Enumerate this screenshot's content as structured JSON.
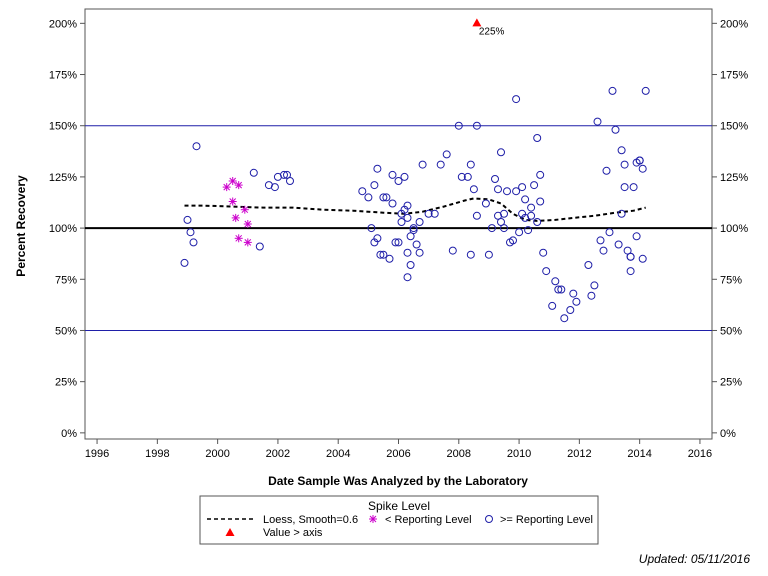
{
  "chart_data": {
    "type": "scatter",
    "xlabel": "Date Sample Was Analyzed by the Laboratory",
    "ylabel": "Percent Recovery",
    "xlim": [
      1995.6,
      2016.4
    ],
    "ylim": [
      -3,
      207
    ],
    "x_ticks": [
      1996,
      1998,
      2000,
      2002,
      2004,
      2006,
      2008,
      2010,
      2012,
      2014,
      2016
    ],
    "x_tick_labels": [
      "1996",
      "1998",
      "2000",
      "2002",
      "2004",
      "2006",
      "2008",
      "2010",
      "2012",
      "2014",
      "2016"
    ],
    "y_ticks": [
      0,
      25,
      50,
      75,
      100,
      125,
      150,
      175,
      200
    ],
    "y_tick_labels": [
      "0%",
      "25%",
      "50%",
      "75%",
      "100%",
      "125%",
      "150%",
      "175%",
      "200%"
    ],
    "reference_lines": [
      {
        "y": 50,
        "color": "#1f1fa8",
        "style": "thin"
      },
      {
        "y": 100,
        "color": "#000000",
        "style": "thick"
      },
      {
        "y": 150,
        "color": "#1f1fa8",
        "style": "thin"
      }
    ],
    "legend": {
      "title": "Spike Level",
      "position": "bottom",
      "entries": [
        {
          "label": "Loess, Smooth=0.6",
          "symbol": "dashed-line"
        },
        {
          "label": "< Reporting Level",
          "symbol": "star"
        },
        {
          "label": ">= Reporting Level",
          "symbol": "circle"
        },
        {
          "label": "Value > axis",
          "symbol": "triangle"
        }
      ]
    },
    "series": [
      {
        "name": "Loess, Smooth=0.6",
        "kind": "line",
        "color": "#000000",
        "points": [
          [
            1998.9,
            111
          ],
          [
            1999.5,
            111
          ],
          [
            2000.5,
            110.5
          ],
          [
            2001.5,
            110
          ],
          [
            2002.5,
            110
          ],
          [
            2003.5,
            109
          ],
          [
            2004.5,
            108.5
          ],
          [
            2005.5,
            107.5
          ],
          [
            2006.2,
            107
          ],
          [
            2006.8,
            108
          ],
          [
            2007.5,
            110.5
          ],
          [
            2008.2,
            113.5
          ],
          [
            2008.5,
            114.5
          ],
          [
            2009.0,
            114
          ],
          [
            2009.4,
            112
          ],
          [
            2009.8,
            107
          ],
          [
            2010.2,
            104
          ],
          [
            2010.6,
            103.5
          ],
          [
            2011.2,
            104
          ],
          [
            2011.8,
            105
          ],
          [
            2012.5,
            106
          ],
          [
            2013.2,
            107.5
          ],
          [
            2013.8,
            108.5
          ],
          [
            2014.2,
            110
          ]
        ]
      },
      {
        "name": "< Reporting Level",
        "kind": "star",
        "color": "#cc00cc",
        "points": [
          [
            2000.3,
            120
          ],
          [
            2000.5,
            123
          ],
          [
            2000.7,
            121
          ],
          [
            2000.5,
            113
          ],
          [
            2000.9,
            109
          ],
          [
            2000.6,
            105
          ],
          [
            2001.0,
            102
          ],
          [
            2000.7,
            95
          ],
          [
            2001.0,
            93
          ]
        ]
      },
      {
        "name": ">= Reporting Level",
        "kind": "circle",
        "color": "#1f1fa8",
        "points": [
          [
            1998.9,
            83
          ],
          [
            1999.0,
            104
          ],
          [
            1999.1,
            98
          ],
          [
            1999.2,
            93
          ],
          [
            1999.3,
            140
          ],
          [
            2001.2,
            127
          ],
          [
            2001.4,
            91
          ],
          [
            2001.7,
            121
          ],
          [
            2001.9,
            120
          ],
          [
            2002.0,
            125
          ],
          [
            2002.2,
            126
          ],
          [
            2002.3,
            126
          ],
          [
            2002.4,
            123
          ],
          [
            2004.8,
            118
          ],
          [
            2005.0,
            115
          ],
          [
            2005.1,
            100
          ],
          [
            2005.2,
            121
          ],
          [
            2005.2,
            93
          ],
          [
            2005.3,
            129
          ],
          [
            2005.3,
            95
          ],
          [
            2005.4,
            87
          ],
          [
            2005.5,
            87
          ],
          [
            2005.5,
            115
          ],
          [
            2005.6,
            115
          ],
          [
            2005.7,
            85
          ],
          [
            2005.8,
            126
          ],
          [
            2005.8,
            112
          ],
          [
            2005.9,
            93
          ],
          [
            2006.0,
            93
          ],
          [
            2006.0,
            123
          ],
          [
            2006.1,
            107
          ],
          [
            2006.1,
            103
          ],
          [
            2006.2,
            109
          ],
          [
            2006.2,
            125
          ],
          [
            2006.3,
            111
          ],
          [
            2006.3,
            105
          ],
          [
            2006.3,
            88
          ],
          [
            2006.3,
            76
          ],
          [
            2006.4,
            82
          ],
          [
            2006.4,
            96
          ],
          [
            2006.5,
            100
          ],
          [
            2006.5,
            99
          ],
          [
            2006.6,
            92
          ],
          [
            2006.7,
            103
          ],
          [
            2006.7,
            88
          ],
          [
            2006.8,
            131
          ],
          [
            2007.0,
            107
          ],
          [
            2007.2,
            107
          ],
          [
            2007.4,
            131
          ],
          [
            2007.6,
            136
          ],
          [
            2007.8,
            89
          ],
          [
            2008.0,
            150
          ],
          [
            2008.1,
            125
          ],
          [
            2008.3,
            125
          ],
          [
            2008.4,
            87
          ],
          [
            2008.4,
            131
          ],
          [
            2008.5,
            119
          ],
          [
            2008.6,
            150
          ],
          [
            2008.6,
            106
          ],
          [
            2008.9,
            112
          ],
          [
            2009.0,
            87
          ],
          [
            2009.1,
            100
          ],
          [
            2009.2,
            124
          ],
          [
            2009.3,
            106
          ],
          [
            2009.3,
            119
          ],
          [
            2009.4,
            103
          ],
          [
            2009.4,
            137
          ],
          [
            2009.5,
            100
          ],
          [
            2009.5,
            107
          ],
          [
            2009.6,
            118
          ],
          [
            2009.7,
            93
          ],
          [
            2009.8,
            94
          ],
          [
            2009.9,
            118
          ],
          [
            2009.9,
            163
          ],
          [
            2010.0,
            98
          ],
          [
            2010.1,
            107
          ],
          [
            2010.1,
            120
          ],
          [
            2010.2,
            105
          ],
          [
            2010.2,
            114
          ],
          [
            2010.3,
            99
          ],
          [
            2010.4,
            106
          ],
          [
            2010.4,
            110
          ],
          [
            2010.5,
            121
          ],
          [
            2010.6,
            144
          ],
          [
            2010.6,
            103
          ],
          [
            2010.7,
            126
          ],
          [
            2010.7,
            113
          ],
          [
            2010.8,
            88
          ],
          [
            2010.9,
            79
          ],
          [
            2011.1,
            62
          ],
          [
            2011.2,
            74
          ],
          [
            2011.3,
            70
          ],
          [
            2011.4,
            70
          ],
          [
            2011.5,
            56
          ],
          [
            2011.7,
            60
          ],
          [
            2011.8,
            68
          ],
          [
            2011.9,
            64
          ],
          [
            2012.3,
            82
          ],
          [
            2012.4,
            67
          ],
          [
            2012.5,
            72
          ],
          [
            2012.6,
            152
          ],
          [
            2012.7,
            94
          ],
          [
            2012.8,
            89
          ],
          [
            2012.9,
            128
          ],
          [
            2013.0,
            98
          ],
          [
            2013.1,
            167
          ],
          [
            2013.2,
            148
          ],
          [
            2013.3,
            92
          ],
          [
            2013.4,
            107
          ],
          [
            2013.4,
            138
          ],
          [
            2013.5,
            120
          ],
          [
            2013.5,
            131
          ],
          [
            2013.6,
            89
          ],
          [
            2013.7,
            79
          ],
          [
            2013.7,
            86
          ],
          [
            2013.7,
            86
          ],
          [
            2013.8,
            120
          ],
          [
            2013.9,
            132
          ],
          [
            2013.9,
            96
          ],
          [
            2014.0,
            133
          ],
          [
            2014.0,
            133
          ],
          [
            2014.1,
            85
          ],
          [
            2014.1,
            129
          ],
          [
            2014.2,
            167
          ]
        ]
      },
      {
        "name": "Value > axis",
        "kind": "triangle",
        "color": "#ff0000",
        "points": [
          [
            2008.6,
            200
          ]
        ],
        "labels": [
          "225%"
        ]
      }
    ]
  },
  "footnote": "Updated: 05/11/2016"
}
